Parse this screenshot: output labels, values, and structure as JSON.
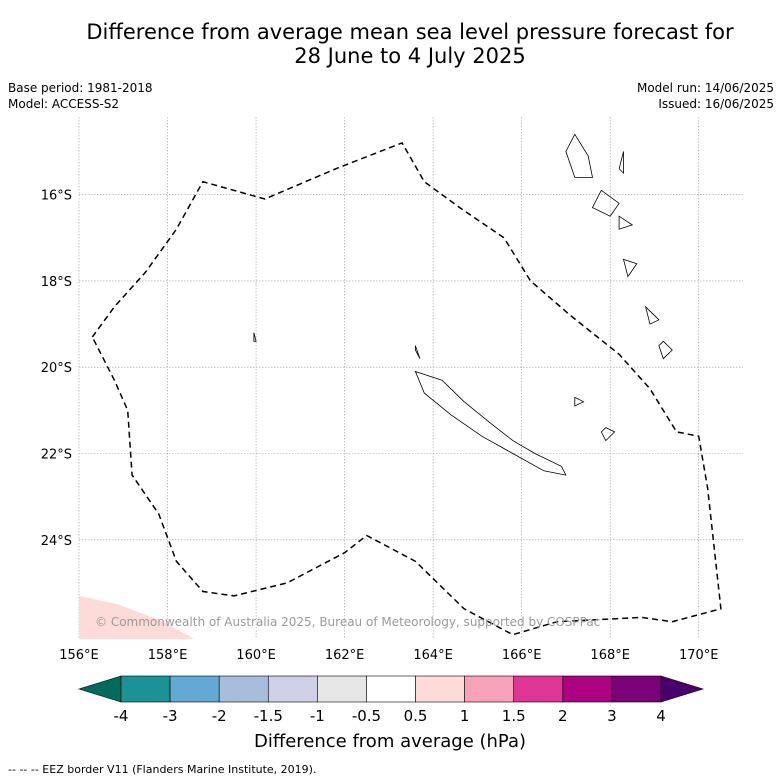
{
  "title_line1": "Difference from average mean sea level pressure forecast for",
  "title_line2": "28 June to 4 July 2025",
  "meta": {
    "base_period": "Base period: 1981-2018",
    "model": "Model: ACCESS-S2",
    "model_run": "Model run: 14/06/2025",
    "issued": "Issued: 16/06/2025"
  },
  "map": {
    "lon_range": [
      156,
      171
    ],
    "lat_range": [
      -26.3,
      -14.2
    ],
    "lon_ticks": [
      156,
      158,
      160,
      162,
      164,
      166,
      168,
      170
    ],
    "lon_tick_labels": [
      "156°E",
      "158°E",
      "160°E",
      "162°E",
      "164°E",
      "166°E",
      "168°E",
      "170°E"
    ],
    "lat_ticks": [
      -16,
      -18,
      -20,
      -22,
      -24
    ],
    "lat_tick_labels": [
      "16°S",
      "18°S",
      "20°S",
      "22°S",
      "24°S"
    ],
    "grid": true,
    "copyright": "© Commonwealth of Australia 2025, Bureau of Meteorology, supported by COSPPac",
    "anomaly_color": "#fddbd8",
    "eez_color": "#000000",
    "eez_border_lonlat": [
      [
        156.3,
        -19.3
      ],
      [
        156.8,
        -18.6
      ],
      [
        157.5,
        -17.8
      ],
      [
        158.2,
        -16.8
      ],
      [
        158.8,
        -15.7
      ],
      [
        160.2,
        -16.1
      ],
      [
        161.8,
        -15.4
      ],
      [
        163.3,
        -14.8
      ],
      [
        163.8,
        -15.7
      ],
      [
        164.6,
        -16.3
      ],
      [
        165.6,
        -17.0
      ],
      [
        166.2,
        -18.0
      ],
      [
        167.1,
        -18.8
      ],
      [
        168.2,
        -19.7
      ],
      [
        168.9,
        -20.5
      ],
      [
        169.5,
        -21.5
      ],
      [
        170.0,
        -21.6
      ],
      [
        170.2,
        -22.8
      ],
      [
        170.5,
        -25.6
      ],
      [
        169.4,
        -25.9
      ],
      [
        168.7,
        -25.8
      ],
      [
        166.8,
        -25.9
      ],
      [
        165.8,
        -26.2
      ],
      [
        164.7,
        -25.6
      ],
      [
        163.6,
        -24.5
      ],
      [
        162.5,
        -23.9
      ],
      [
        162.0,
        -24.3
      ],
      [
        160.7,
        -25.0
      ],
      [
        159.5,
        -25.3
      ],
      [
        158.8,
        -25.2
      ],
      [
        158.2,
        -24.5
      ],
      [
        157.8,
        -23.4
      ],
      [
        157.2,
        -22.5
      ],
      [
        157.1,
        -21.0
      ],
      [
        156.8,
        -20.3
      ],
      [
        156.3,
        -19.3
      ]
    ],
    "coastlines_lonlat": [
      [
        [
          163.6,
          -20.1
        ],
        [
          164.2,
          -20.3
        ],
        [
          164.7,
          -20.8
        ],
        [
          165.3,
          -21.3
        ],
        [
          165.8,
          -21.7
        ],
        [
          166.3,
          -22.0
        ],
        [
          166.9,
          -22.3
        ],
        [
          167.0,
          -22.5
        ],
        [
          166.5,
          -22.4
        ],
        [
          165.8,
          -22.0
        ],
        [
          165.1,
          -21.6
        ],
        [
          164.4,
          -21.1
        ],
        [
          163.8,
          -20.6
        ],
        [
          163.6,
          -20.1
        ]
      ],
      [
        [
          163.6,
          -19.5
        ],
        [
          163.7,
          -19.8
        ],
        [
          163.6,
          -19.6
        ]
      ],
      [
        [
          167.2,
          -14.6
        ],
        [
          167.5,
          -15.1
        ],
        [
          167.6,
          -15.6
        ],
        [
          167.2,
          -15.6
        ],
        [
          167.0,
          -15.0
        ],
        [
          167.2,
          -14.6
        ]
      ],
      [
        [
          167.8,
          -15.9
        ],
        [
          168.2,
          -16.2
        ],
        [
          168.0,
          -16.5
        ],
        [
          167.6,
          -16.3
        ],
        [
          167.8,
          -15.9
        ]
      ],
      [
        [
          168.2,
          -15.4
        ],
        [
          168.3,
          -15.0
        ],
        [
          168.3,
          -15.5
        ],
        [
          168.2,
          -15.4
        ]
      ],
      [
        [
          168.2,
          -16.5
        ],
        [
          168.5,
          -16.7
        ],
        [
          168.2,
          -16.8
        ],
        [
          168.2,
          -16.5
        ]
      ],
      [
        [
          168.3,
          -17.5
        ],
        [
          168.6,
          -17.6
        ],
        [
          168.4,
          -17.9
        ],
        [
          168.3,
          -17.5
        ]
      ],
      [
        [
          168.8,
          -18.6
        ],
        [
          169.1,
          -18.9
        ],
        [
          168.9,
          -19.0
        ],
        [
          168.8,
          -18.6
        ]
      ],
      [
        [
          169.2,
          -19.4
        ],
        [
          169.4,
          -19.6
        ],
        [
          169.2,
          -19.8
        ],
        [
          169.1,
          -19.5
        ],
        [
          169.2,
          -19.4
        ]
      ],
      [
        [
          167.2,
          -20.7
        ],
        [
          167.4,
          -20.8
        ],
        [
          167.2,
          -20.9
        ],
        [
          167.2,
          -20.7
        ]
      ],
      [
        [
          167.9,
          -21.4
        ],
        [
          168.1,
          -21.5
        ],
        [
          167.9,
          -21.7
        ],
        [
          167.8,
          -21.5
        ],
        [
          167.9,
          -21.4
        ]
      ],
      [
        [
          159.95,
          -19.2
        ],
        [
          160.0,
          -19.4
        ],
        [
          159.95,
          -19.4
        ],
        [
          159.95,
          -19.2
        ]
      ]
    ],
    "anomaly_region_lonlat": [
      [
        156.0,
        -25.3
      ],
      [
        156.9,
        -25.5
      ],
      [
        157.9,
        -25.9
      ],
      [
        158.6,
        -26.3
      ],
      [
        156.0,
        -26.3
      ]
    ]
  },
  "colorbar": {
    "tick_labels": [
      "-4",
      "-3",
      "-2",
      "-1.5",
      "-1",
      "-0.5",
      "0.5",
      "1",
      "1.5",
      "2",
      "3",
      "4"
    ],
    "colors": [
      "#1b9396",
      "#64a9d3",
      "#a8bddb",
      "#cfd0e6",
      "#e6e6e6",
      "#ffffff",
      "#fddbd8",
      "#f7a1ba",
      "#de3597",
      "#ad0382",
      "#7a0177"
    ],
    "under_color": "#016c59",
    "over_color": "#49006a",
    "label": "Difference from average (hPa)"
  },
  "footer": "--  --  -- EEZ border V11 (Flanders Marine Institute, 2019)."
}
